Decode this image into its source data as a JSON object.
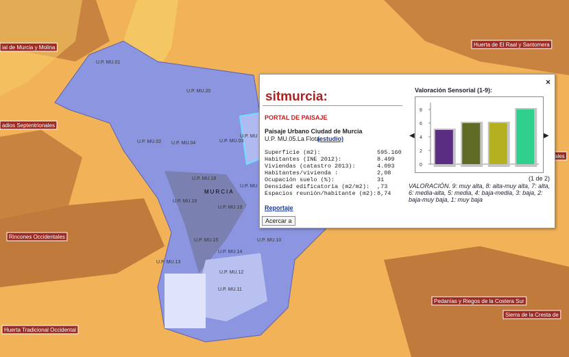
{
  "regions": [
    "ial de Murcia y Molina",
    "Huerta de El Raal y Santomera",
    "adios Septentrionales",
    "ales",
    "Rincones Occidentales",
    "Huerta Tradicional Occidental",
    "Pedanías y Riegos de la Costera Sur",
    "Sierra de la Cresta de"
  ],
  "units": [
    "U.P. MU.01",
    "U.P. MU.20",
    "U.P. MU.02",
    "U.P. MU.04",
    "U.P. MU.03",
    "U.P. MU",
    "U.P. MU.18",
    "MURCIA",
    "U.P. MU",
    "U.P. MU.16",
    "U.P. MU.19",
    "U.P. MU.15",
    "U.P. MU.14",
    "U.P. MU.10",
    "U.P. MU.13",
    "U.P. MU.12",
    "U.P. MU.11"
  ],
  "popup": {
    "logo": "sitmurcia:",
    "close": "×",
    "portal": "PORTAL DE PAISAJE",
    "heading": "Paisaje Urbano Ciudad de Murcia",
    "subheading": "U.P. MU.05.La Flota",
    "study_link": "(estudio)",
    "rows": [
      [
        "Superficie (m2):",
        "595.160"
      ],
      [
        "Habitantes (INE 2012):",
        "8.499"
      ],
      [
        "Viviendas (catastro 2013):",
        "4.093"
      ],
      [
        "Habitantes/vivienda :",
        "2,08"
      ],
      [
        "Ocupación suelo (%):",
        "31"
      ],
      [
        "Densidad edificatoria (m2/m2):",
        ",73"
      ],
      [
        "Espacios reunión/habitante (m2):",
        "8,74"
      ]
    ],
    "report_link": "Reportaje",
    "zoom_button": "Acercar a",
    "prev": "◀",
    "next": "▶",
    "pager": "(1 de 2)",
    "legend": "VALORACIÓN. 9: muy alta, 8: alta-muy alta, 7: alta, 6: media-alta, 5: media, 4: baja-media, 3: baja, 2: baja-muy baja, 1: muy baja"
  },
  "chart_data": {
    "type": "bar",
    "title": "Valoración Sensorial (1-9):",
    "values": [
      5,
      6,
      6,
      8
    ],
    "colors": [
      "#5b2d82",
      "#5f6b25",
      "#b5b020",
      "#2fcf8e"
    ],
    "ylim": [
      0,
      9
    ],
    "yticks": [
      0,
      2,
      4,
      6,
      8
    ]
  }
}
